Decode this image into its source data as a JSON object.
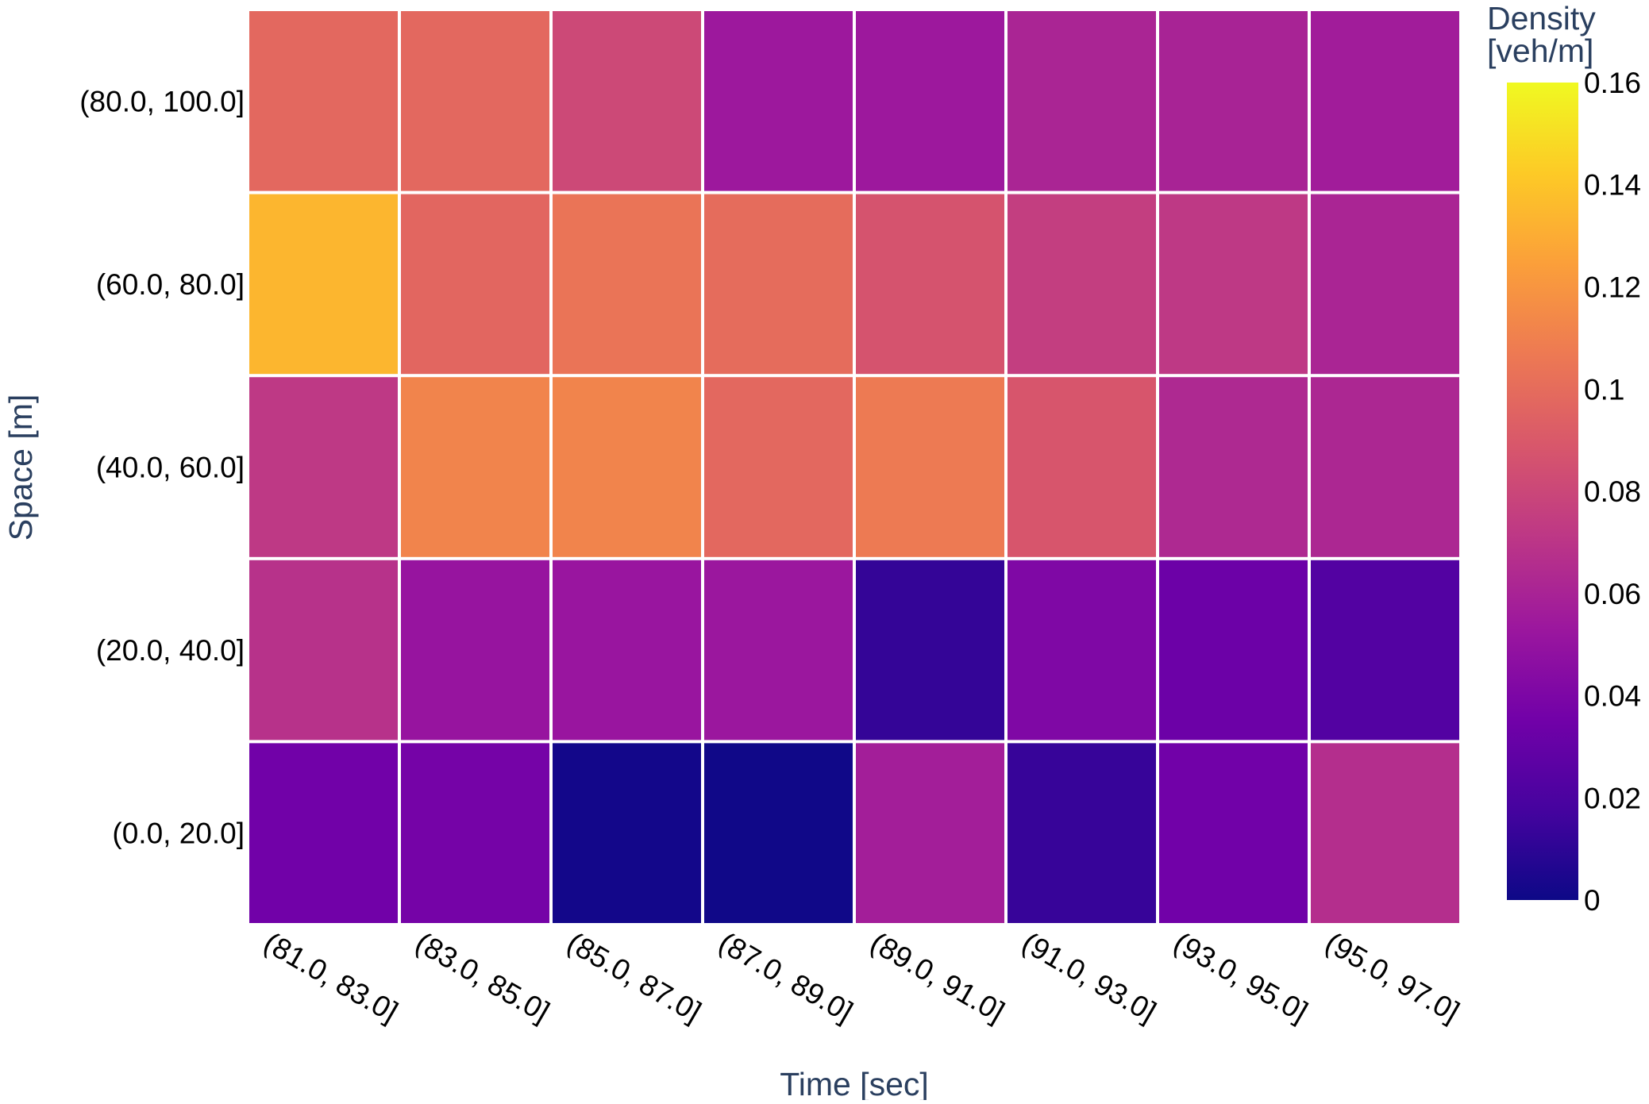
{
  "chart_data": {
    "type": "heatmap",
    "xlabel": "Time [sec]",
    "ylabel": "Space [m]",
    "x_categories": [
      "(81.0, 83.0]",
      "(83.0, 85.0]",
      "(85.0, 87.0]",
      "(87.0, 89.0]",
      "(89.0, 91.0]",
      "(91.0, 93.0]",
      "(93.0, 95.0]",
      "(95.0, 97.0]"
    ],
    "y_categories": [
      "(0.0, 20.0]",
      "(20.0, 40.0]",
      "(40.0, 60.0]",
      "(60.0, 80.0]",
      "(80.0, 100.0]"
    ],
    "values": [
      [
        0.035,
        0.037,
        0.002,
        0.001,
        0.057,
        0.013,
        0.035,
        0.066
      ],
      [
        0.068,
        0.051,
        0.052,
        0.053,
        0.012,
        0.041,
        0.033,
        0.023
      ],
      [
        0.072,
        0.112,
        0.112,
        0.098,
        0.107,
        0.088,
        0.063,
        0.062
      ],
      [
        0.134,
        0.097,
        0.104,
        0.1,
        0.087,
        0.075,
        0.072,
        0.061
      ],
      [
        0.098,
        0.098,
        0.081,
        0.054,
        0.054,
        0.061,
        0.06,
        0.056
      ]
    ],
    "colorscale": "Plasma",
    "colorbar": {
      "title": [
        "Density",
        "[veh/m]"
      ],
      "range": [
        0,
        0.16
      ],
      "tick_values": [
        0,
        0.02,
        0.04,
        0.06,
        0.08,
        0.1,
        0.12,
        0.14,
        0.16
      ],
      "tick_labels": [
        "0",
        "0.02",
        "0.04",
        "0.06",
        "0.08",
        "0.1",
        "0.12",
        "0.14",
        "0.16"
      ]
    },
    "colors": {
      "axis_title": "#2a3f5f",
      "tick_label": "#000000",
      "cell_gap": "#ffffff"
    }
  }
}
